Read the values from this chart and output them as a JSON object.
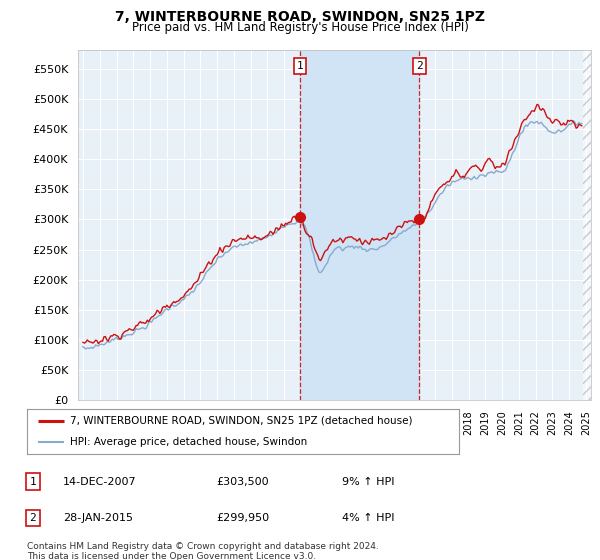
{
  "title": "7, WINTERBOURNE ROAD, SWINDON, SN25 1PZ",
  "subtitle": "Price paid vs. HM Land Registry's House Price Index (HPI)",
  "yticks": [
    0,
    50000,
    100000,
    150000,
    200000,
    250000,
    300000,
    350000,
    400000,
    450000,
    500000,
    550000
  ],
  "ylim": [
    0,
    580000
  ],
  "xlim_start": 1994.7,
  "xlim_end": 2025.3,
  "bg_color": "#e8f0f8",
  "shade_color": "#d0e4f5",
  "grid_color": "#ffffff",
  "sale1_x": 2007.96,
  "sale1_y": 303500,
  "sale1_label": "1",
  "sale2_x": 2015.07,
  "sale2_y": 299950,
  "sale2_label": "2",
  "red_color": "#cc1111",
  "blue_color": "#88aacc",
  "legend_line1": "7, WINTERBOURNE ROAD, SWINDON, SN25 1PZ (detached house)",
  "legend_line2": "HPI: Average price, detached house, Swindon",
  "annotation1_date": "14-DEC-2007",
  "annotation1_price": "£303,500",
  "annotation1_hpi": "9% ↑ HPI",
  "annotation2_date": "28-JAN-2015",
  "annotation2_price": "£299,950",
  "annotation2_hpi": "4% ↑ HPI",
  "footer": "Contains HM Land Registry data © Crown copyright and database right 2024.\nThis data is licensed under the Open Government Licence v3.0."
}
